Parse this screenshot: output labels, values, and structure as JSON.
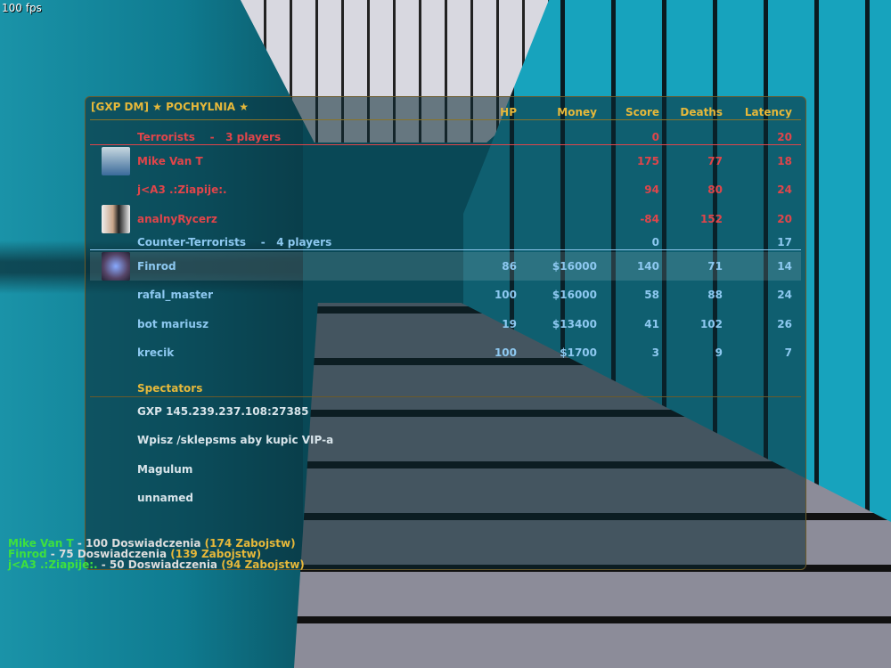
{
  "fps": "100 fps",
  "title": {
    "server": "[GXP DM]",
    "map": "POCHYLNIA",
    "star": "★"
  },
  "columns": [
    "HP",
    "Money",
    "Score",
    "Deaths",
    "Latency"
  ],
  "teams": [
    {
      "name": "Terrorists",
      "sep": "-",
      "count": "3 players",
      "score": "0",
      "latency": "20",
      "color": "#e0454a",
      "players": [
        {
          "name": "Mike Van T",
          "hp": "",
          "money": "",
          "score": "175",
          "deaths": "77",
          "latency": "18",
          "avatar": true
        },
        {
          "name": "j<A3 .:Ziapije:.",
          "hp": "",
          "money": "",
          "score": "94",
          "deaths": "80",
          "latency": "24",
          "avatar": false
        },
        {
          "name": "analnyRycerz",
          "hp": "",
          "money": "",
          "score": "-84",
          "deaths": "152",
          "latency": "20",
          "avatar": true
        }
      ]
    },
    {
      "name": "Counter-Terrorists",
      "sep": "-",
      "count": "4 players",
      "score": "0",
      "latency": "17",
      "color": "#8dc8f0",
      "players": [
        {
          "name": "Finrod",
          "hp": "86",
          "money": "$16000",
          "score": "140",
          "deaths": "71",
          "latency": "14",
          "avatar": true,
          "highlighted": true
        },
        {
          "name": "rafal_master",
          "hp": "100",
          "money": "$16000",
          "score": "58",
          "deaths": "88",
          "latency": "24",
          "avatar": false
        },
        {
          "name": "bot mariusz",
          "hp": "19",
          "money": "$13400",
          "score": "41",
          "deaths": "102",
          "latency": "26",
          "avatar": false
        },
        {
          "name": "krecik",
          "hp": "100",
          "money": "$1700",
          "score": "3",
          "deaths": "9",
          "latency": "7",
          "avatar": false
        }
      ]
    }
  ],
  "spectators": {
    "label": "Spectators",
    "items": [
      "GXP 145.239.237.108:27385",
      "Wpisz /sklepsms aby kupic VIP-a",
      "Magulum",
      "unnamed"
    ]
  },
  "killfeed": [
    {
      "name": "Mike Van T",
      "sep": " - ",
      "xp": "100 Doswiadczenia",
      "kills": "(174 Zabojstw)"
    },
    {
      "name": "Finrod",
      "sep": " - ",
      "xp": "75 Doswiadczenia",
      "kills": "(139 Zabojstw)"
    },
    {
      "name": "j<A3 .:Ziapije:.",
      "sep": " - ",
      "xp": "50 Doswiadczenia",
      "kills": "(94 Zabojstw)"
    }
  ]
}
